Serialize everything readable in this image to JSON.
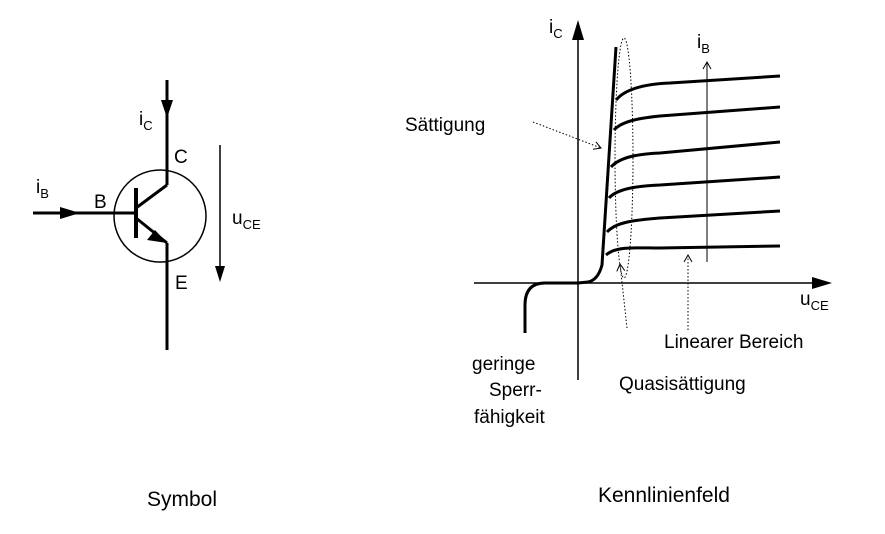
{
  "symbol_panel": {
    "caption": "Symbol",
    "collector_current": {
      "base": "i",
      "sub": "C"
    },
    "base_current": {
      "base": "i",
      "sub": "B"
    },
    "terminal_collector": "C",
    "terminal_base": "B",
    "terminal_emitter": "E",
    "voltage": {
      "base": "u",
      "sub": "CE"
    }
  },
  "characteristic_panel": {
    "caption": "Kennlinienfeld",
    "y_axis": {
      "base": "i",
      "sub": "C"
    },
    "x_axis": {
      "base": "u",
      "sub": "CE"
    },
    "base_current_arrow": {
      "base": "i",
      "sub": "B"
    },
    "label_saturation": "Sättigung",
    "label_linear": "Linearer Bereich",
    "label_quasi": "Quasisättigung",
    "label_blocking_lines": [
      "geringe",
      "Sperr-",
      "fähigkeit"
    ]
  },
  "colors": {
    "stroke": "#000000",
    "background": "#ffffff"
  }
}
